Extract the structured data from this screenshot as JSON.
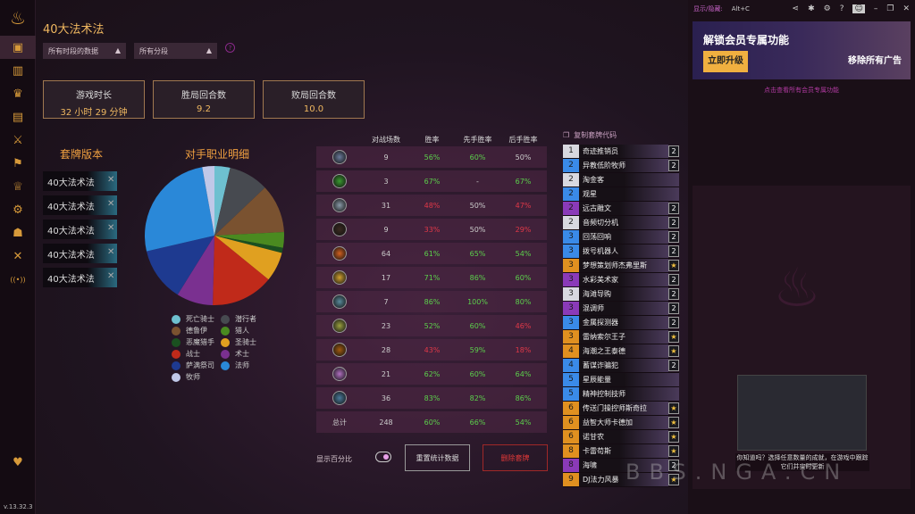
{
  "sidebar": {
    "version": "v.13.32.3",
    "icons": [
      "logo-icon",
      "decks-icon",
      "cards-icon",
      "trophy-icon",
      "collection-icon",
      "arena-icon",
      "battlegrounds-icon",
      "crown-icon",
      "settings-box-icon",
      "mercenaries-icon",
      "duels-icon",
      "live-icon",
      "favorite-icon"
    ]
  },
  "header": {
    "title": "40大法术法",
    "filter_time": "所有时段的数据",
    "filter_rank": "所有分段"
  },
  "stats": [
    {
      "label": "游戏时长",
      "value": "32 小时 29 分钟"
    },
    {
      "label": "胜局回合数",
      "value": "9.2"
    },
    {
      "label": "败局回合数",
      "value": "10.0"
    }
  ],
  "deck_versions": {
    "title": "套牌版本",
    "items": [
      "40大法术法",
      "40大法术法",
      "40大法术法",
      "40大法术法",
      "40大法术法"
    ]
  },
  "chart_data": {
    "type": "pie",
    "title": "对手职业明细",
    "slices": [
      {
        "name": "死亡骑士",
        "value": 9,
        "color": "#6ec0d0"
      },
      {
        "name": "潜行者",
        "value": 23,
        "color": "#474a50"
      },
      {
        "name": "德鲁伊",
        "value": 28,
        "color": "#7a5230"
      },
      {
        "name": "猎人",
        "value": 9,
        "color": "#4a8a20"
      },
      {
        "name": "恶魔猎手",
        "value": 3,
        "color": "#1a5020"
      },
      {
        "name": "圣骑士",
        "value": 17,
        "color": "#e0a020"
      },
      {
        "name": "战士",
        "value": 36,
        "color": "#c02a1a"
      },
      {
        "name": "术士",
        "value": 21,
        "color": "#7a3090"
      },
      {
        "name": "萨满祭司",
        "value": 31,
        "color": "#1e3a90"
      },
      {
        "name": "法师",
        "value": 64,
        "color": "#2a88d8"
      },
      {
        "name": "牧师",
        "value": 7,
        "color": "#c0c8e8"
      }
    ]
  },
  "table": {
    "headers": [
      "对战场数",
      "胜率",
      "先手胜率",
      "后手胜率"
    ],
    "rows": [
      {
        "icon_color": "#6a7a9a",
        "games": "9",
        "wr": "56%",
        "first": "60%",
        "second": "50%",
        "c": [
          "g",
          "g",
          "w"
        ]
      },
      {
        "icon_color": "#3a9a30",
        "games": "3",
        "wr": "67%",
        "first": "-",
        "second": "67%",
        "c": [
          "g",
          "w",
          "g"
        ]
      },
      {
        "icon_color": "#8a9aa8",
        "games": "31",
        "wr": "48%",
        "first": "50%",
        "second": "47%",
        "c": [
          "r",
          "w",
          "r"
        ]
      },
      {
        "icon_color": "#3a2a20",
        "games": "9",
        "wr": "33%",
        "first": "50%",
        "second": "29%",
        "c": [
          "r",
          "w",
          "r"
        ]
      },
      {
        "icon_color": "#d06020",
        "games": "64",
        "wr": "61%",
        "first": "65%",
        "second": "54%",
        "c": [
          "g",
          "g",
          "g"
        ]
      },
      {
        "icon_color": "#d0a030",
        "games": "17",
        "wr": "71%",
        "first": "86%",
        "second": "60%",
        "c": [
          "g",
          "g",
          "g"
        ]
      },
      {
        "icon_color": "#5a8a9a",
        "games": "7",
        "wr": "86%",
        "first": "100%",
        "second": "80%",
        "c": [
          "g",
          "g",
          "g"
        ]
      },
      {
        "icon_color": "#9aa040",
        "games": "23",
        "wr": "52%",
        "first": "60%",
        "second": "46%",
        "c": [
          "g",
          "g",
          "r"
        ]
      },
      {
        "icon_color": "#a05a10",
        "games": "28",
        "wr": "43%",
        "first": "59%",
        "second": "18%",
        "c": [
          "r",
          "g",
          "r"
        ]
      },
      {
        "icon_color": "#b070c0",
        "games": "21",
        "wr": "62%",
        "first": "60%",
        "second": "64%",
        "c": [
          "g",
          "g",
          "g"
        ]
      },
      {
        "icon_color": "#4a7a9a",
        "games": "36",
        "wr": "83%",
        "first": "82%",
        "second": "86%",
        "c": [
          "g",
          "g",
          "g"
        ]
      }
    ],
    "total": {
      "label": "总计",
      "games": "248",
      "wr": "60%",
      "first": "66%",
      "second": "54%"
    }
  },
  "controls": {
    "show_percent": "显示百分比",
    "reset": "重置统计数据",
    "delete": "删除套牌"
  },
  "deck_list": {
    "copy_code": "复制套牌代码",
    "cards": [
      {
        "cost": "1",
        "name": "奇迹推销员",
        "count": "2",
        "rarity": "common"
      },
      {
        "cost": "2",
        "name": "异教低阶牧师",
        "count": "2",
        "rarity": "rare"
      },
      {
        "cost": "2",
        "name": "淘金客",
        "count": "",
        "rarity": "common"
      },
      {
        "cost": "2",
        "name": "观星",
        "count": "",
        "rarity": "rare"
      },
      {
        "cost": "2",
        "name": "远古雕文",
        "count": "2",
        "rarity": "epic"
      },
      {
        "cost": "2",
        "name": "音频切分机",
        "count": "2",
        "rarity": "common"
      },
      {
        "cost": "3",
        "name": "回荡回响",
        "count": "2",
        "rarity": "rare"
      },
      {
        "cost": "3",
        "name": "拨号机器人",
        "count": "2",
        "rarity": "rare"
      },
      {
        "cost": "3",
        "name": "梦想策划师杰弗里斯",
        "count": "★",
        "rarity": "legendary"
      },
      {
        "cost": "3",
        "name": "水彩美术家",
        "count": "2",
        "rarity": "epic"
      },
      {
        "cost": "3",
        "name": "海滩导购",
        "count": "2",
        "rarity": "common"
      },
      {
        "cost": "3",
        "name": "混调师",
        "count": "2",
        "rarity": "epic"
      },
      {
        "cost": "3",
        "name": "金属探测器",
        "count": "2",
        "rarity": "rare"
      },
      {
        "cost": "3",
        "name": "雷纳索尔王子",
        "count": "★",
        "rarity": "legendary"
      },
      {
        "cost": "4",
        "name": "海潮之王泰德",
        "count": "★",
        "rarity": "legendary"
      },
      {
        "cost": "4",
        "name": "蓄谋诈骗犯",
        "count": "2",
        "rarity": "rare"
      },
      {
        "cost": "5",
        "name": "星辰能量",
        "count": "",
        "rarity": "rare"
      },
      {
        "cost": "5",
        "name": "精神控制技师",
        "count": "",
        "rarity": "rare"
      },
      {
        "cost": "6",
        "name": "传送门操控师斯奇拉",
        "count": "★",
        "rarity": "legendary"
      },
      {
        "cost": "6",
        "name": "益智大师卡德加",
        "count": "★",
        "rarity": "legendary"
      },
      {
        "cost": "6",
        "name": "诺甘农",
        "count": "★",
        "rarity": "legendary"
      },
      {
        "cost": "8",
        "name": "卡雷苟斯",
        "count": "★",
        "rarity": "legendary"
      },
      {
        "cost": "8",
        "name": "海啸",
        "count": "2",
        "rarity": "epic"
      },
      {
        "cost": "9",
        "name": "DJ法力风暴",
        "count": "★",
        "rarity": "legendary"
      }
    ]
  },
  "rarity_colors": {
    "common": "#d8d8e0",
    "rare": "#3a8ae8",
    "epic": "#8a3ab8",
    "legendary": "#e09020"
  },
  "right_panel": {
    "toggle_label": "显示/隐藏:",
    "hotkey": "Alt+C",
    "ad_title": "解锁会员专属功能",
    "ad_button": "立即升级",
    "ad_remove": "移除所有广告",
    "ad_link": "点击查看所有会员专属功能",
    "tip": "你知道吗？选择任意数量的成就，在游戏中跟踪它们并实时更新"
  },
  "watermark": "BBS.NGA.CN"
}
